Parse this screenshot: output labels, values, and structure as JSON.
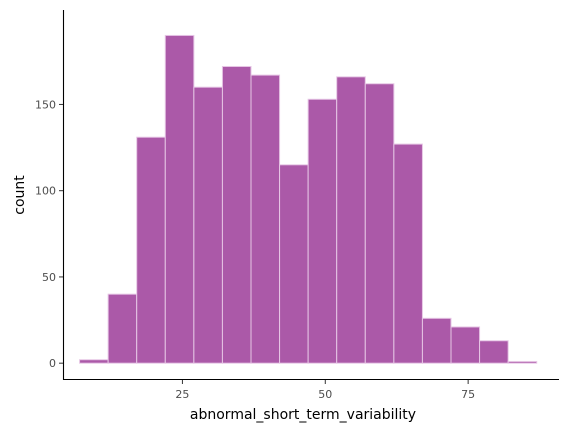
{
  "chart_data": {
    "type": "bar",
    "title": "",
    "xlabel": "abnormal_short_term_variability",
    "ylabel": "count",
    "xlim": [
      4.1,
      90.9
    ],
    "ylim": [
      -9.75,
      204.75
    ],
    "x_ticks": [
      25,
      50,
      75
    ],
    "y_ticks": [
      0,
      50,
      100,
      150
    ],
    "grid": false,
    "legend": "none",
    "bar_color": "#ab59a8",
    "bar_edge_color": "#e6c6e5",
    "bins": [
      {
        "x0": 7.0,
        "x1": 12.0,
        "count": 2
      },
      {
        "x0": 12.0,
        "x1": 17.0,
        "count": 40
      },
      {
        "x0": 17.0,
        "x1": 22.0,
        "count": 131
      },
      {
        "x0": 22.0,
        "x1": 27.0,
        "count": 190
      },
      {
        "x0": 27.0,
        "x1": 32.0,
        "count": 160
      },
      {
        "x0": 32.0,
        "x1": 37.0,
        "count": 172
      },
      {
        "x0": 37.0,
        "x1": 42.0,
        "count": 167
      },
      {
        "x0": 42.0,
        "x1": 47.0,
        "count": 115
      },
      {
        "x0": 47.0,
        "x1": 52.0,
        "count": 153
      },
      {
        "x0": 52.0,
        "x1": 57.0,
        "count": 166
      },
      {
        "x0": 57.0,
        "x1": 62.0,
        "count": 162
      },
      {
        "x0": 62.0,
        "x1": 67.0,
        "count": 127
      },
      {
        "x0": 67.0,
        "x1": 72.0,
        "count": 26
      },
      {
        "x0": 72.0,
        "x1": 77.0,
        "count": 21
      },
      {
        "x0": 77.0,
        "x1": 82.0,
        "count": 13
      },
      {
        "x0": 82.0,
        "x1": 87.0,
        "count": 1
      }
    ]
  }
}
